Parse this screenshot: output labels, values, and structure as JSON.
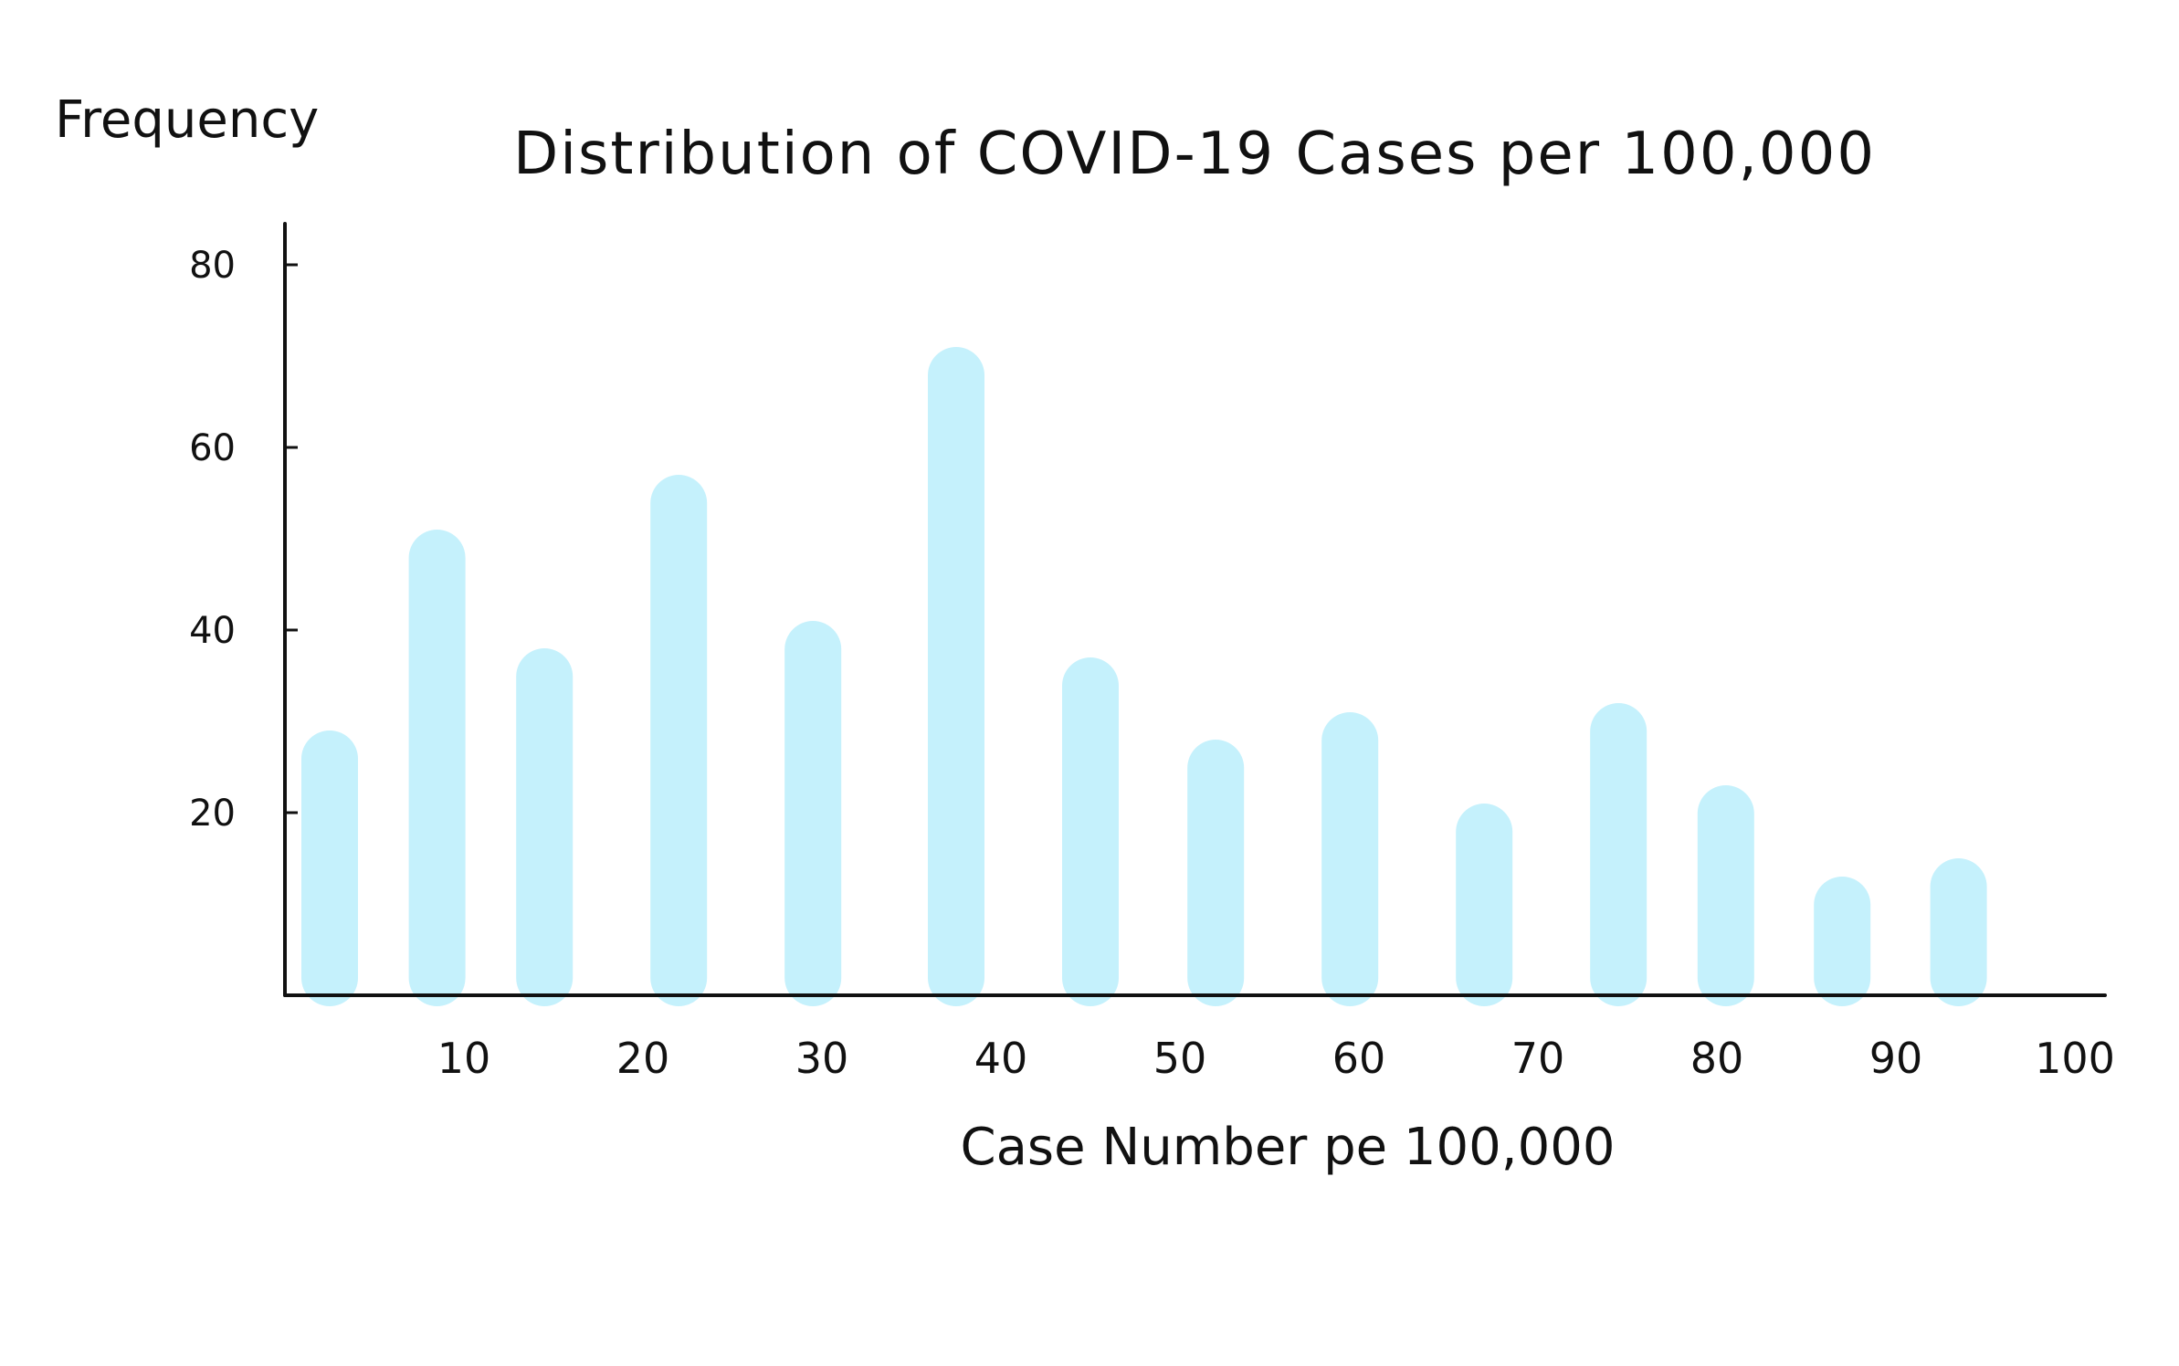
{
  "chart_data": {
    "type": "bar",
    "title": "Distribution of COVID-19 Cases per 100,000",
    "xlabel": "Case Number pe 100,000",
    "ylabel": "Frequency",
    "x_ticks": [
      "10",
      "20",
      "30",
      "40",
      "50",
      "60",
      "70",
      "80",
      "90",
      "100"
    ],
    "y_ticks": [
      "20",
      "40",
      "60",
      "80"
    ],
    "xlim": [
      0,
      100
    ],
    "ylim": [
      0,
      80
    ],
    "grid": false,
    "bar_color": "#c5f1fc",
    "axis_color": "#111111",
    "bars": [
      {
        "x": 2.5,
        "value": 29
      },
      {
        "x": 8.5,
        "value": 51
      },
      {
        "x": 14.5,
        "value": 38
      },
      {
        "x": 22,
        "value": 57
      },
      {
        "x": 29.5,
        "value": 41
      },
      {
        "x": 37.5,
        "value": 71
      },
      {
        "x": 45,
        "value": 37
      },
      {
        "x": 52,
        "value": 28
      },
      {
        "x": 59.5,
        "value": 31
      },
      {
        "x": 67,
        "value": 21
      },
      {
        "x": 74.5,
        "value": 32
      },
      {
        "x": 80.5,
        "value": 23
      },
      {
        "x": 87,
        "value": 13
      },
      {
        "x": 93.5,
        "value": 15
      }
    ]
  }
}
